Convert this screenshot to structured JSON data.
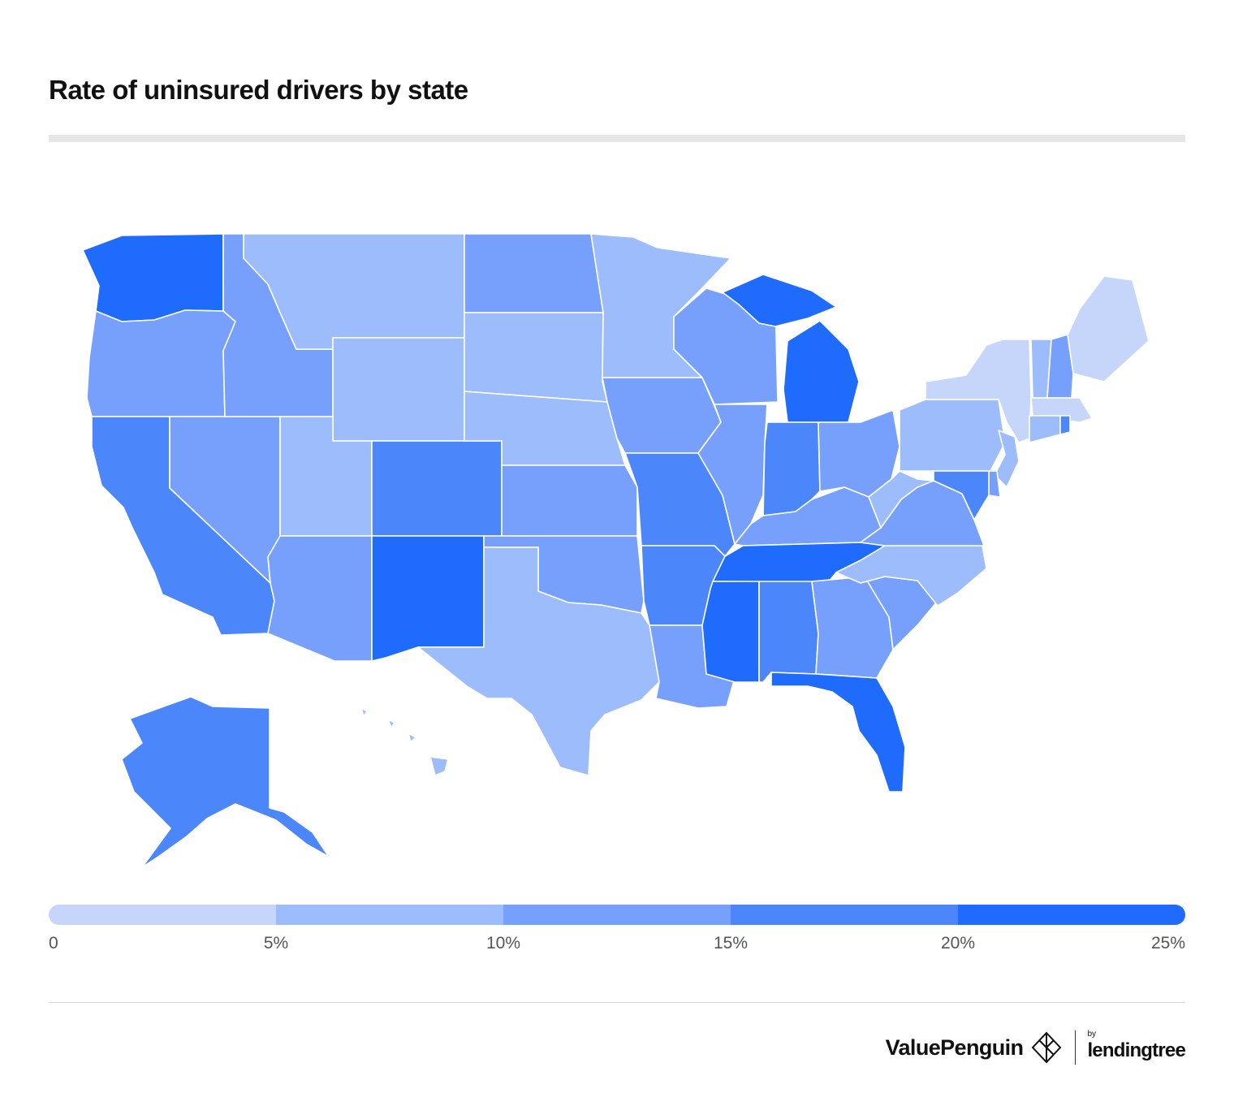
{
  "title": "Rate of uninsured drivers by state",
  "colors": {
    "bin_0_5": "#c6d6fb",
    "bin_5_10": "#9dbcfb",
    "bin_10_15": "#76a0fb",
    "bin_15_20": "#4b86fb",
    "bin_20_25": "#1f6bfb",
    "state_border": "#ffffff",
    "title_rule": "#e6e6e6"
  },
  "chart_data": {
    "type": "choropleth",
    "title": "Rate of uninsured drivers by state",
    "legend": {
      "bins": [
        {
          "range": [
            0,
            5
          ],
          "color": "#c6d6fb"
        },
        {
          "range": [
            5,
            10
          ],
          "color": "#9dbcfb"
        },
        {
          "range": [
            10,
            15
          ],
          "color": "#76a0fb"
        },
        {
          "range": [
            15,
            20
          ],
          "color": "#4b86fb"
        },
        {
          "range": [
            20,
            25
          ],
          "color": "#1f6bfb"
        }
      ],
      "tick_labels": [
        "0",
        "5%",
        "10%",
        "15%",
        "20%",
        "25%"
      ],
      "placement": "bottom"
    },
    "states": [
      {
        "state": "Washington",
        "bin": "20-25%"
      },
      {
        "state": "Oregon",
        "bin": "10-15%"
      },
      {
        "state": "California",
        "bin": "15-20%"
      },
      {
        "state": "Nevada",
        "bin": "10-15%"
      },
      {
        "state": "Idaho",
        "bin": "10-15%"
      },
      {
        "state": "Montana",
        "bin": "5-10%"
      },
      {
        "state": "Wyoming",
        "bin": "5-10%"
      },
      {
        "state": "Utah",
        "bin": "5-10%"
      },
      {
        "state": "Arizona",
        "bin": "10-15%"
      },
      {
        "state": "Colorado",
        "bin": "15-20%"
      },
      {
        "state": "New Mexico",
        "bin": "20-25%"
      },
      {
        "state": "North Dakota",
        "bin": "10-15%"
      },
      {
        "state": "South Dakota",
        "bin": "5-10%"
      },
      {
        "state": "Nebraska",
        "bin": "5-10%"
      },
      {
        "state": "Kansas",
        "bin": "10-15%"
      },
      {
        "state": "Oklahoma",
        "bin": "10-15%"
      },
      {
        "state": "Texas",
        "bin": "5-10%"
      },
      {
        "state": "Minnesota",
        "bin": "5-10%"
      },
      {
        "state": "Iowa",
        "bin": "10-15%"
      },
      {
        "state": "Missouri",
        "bin": "15-20%"
      },
      {
        "state": "Arkansas",
        "bin": "15-20%"
      },
      {
        "state": "Louisiana",
        "bin": "10-15%"
      },
      {
        "state": "Wisconsin",
        "bin": "10-15%"
      },
      {
        "state": "Illinois",
        "bin": "10-15%"
      },
      {
        "state": "Michigan",
        "bin": "20-25%"
      },
      {
        "state": "Indiana",
        "bin": "15-20%"
      },
      {
        "state": "Ohio",
        "bin": "10-15%"
      },
      {
        "state": "Kentucky",
        "bin": "10-15%"
      },
      {
        "state": "Tennessee",
        "bin": "20-25%"
      },
      {
        "state": "Mississippi",
        "bin": "20-25%"
      },
      {
        "state": "Alabama",
        "bin": "15-20%"
      },
      {
        "state": "Georgia",
        "bin": "10-15%"
      },
      {
        "state": "Florida",
        "bin": "20-25%"
      },
      {
        "state": "South Carolina",
        "bin": "10-15%"
      },
      {
        "state": "North Carolina",
        "bin": "5-10%"
      },
      {
        "state": "Virginia",
        "bin": "10-15%"
      },
      {
        "state": "West Virginia",
        "bin": "5-10%"
      },
      {
        "state": "Pennsylvania",
        "bin": "5-10%"
      },
      {
        "state": "New York",
        "bin": "0-5%"
      },
      {
        "state": "New Jersey",
        "bin": "5-10%"
      },
      {
        "state": "Delaware",
        "bin": "10-15%"
      },
      {
        "state": "Maryland",
        "bin": "15-20%"
      },
      {
        "state": "Vermont",
        "bin": "5-10%"
      },
      {
        "state": "New Hampshire",
        "bin": "10-15%"
      },
      {
        "state": "Maine",
        "bin": "0-5%"
      },
      {
        "state": "Massachusetts",
        "bin": "0-5%"
      },
      {
        "state": "Connecticut",
        "bin": "5-10%"
      },
      {
        "state": "Rhode Island",
        "bin": "15-20%"
      },
      {
        "state": "Alaska",
        "bin": "15-20%"
      },
      {
        "state": "Hawaii",
        "bin": "5-10%"
      }
    ]
  },
  "footer": {
    "brand_main": "ValuePenguin",
    "brand_by": "by",
    "brand_partner": "lendingtree",
    "brand_main_icon": "penguin-diamond-icon",
    "brand_partner_icon": "leaf-icon"
  }
}
